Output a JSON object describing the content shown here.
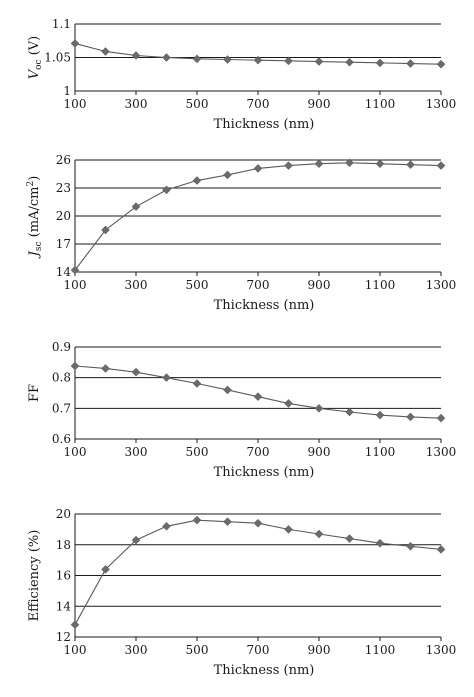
{
  "chart_data": [
    {
      "type": "line",
      "id": "voc",
      "x": [
        100,
        200,
        300,
        400,
        500,
        600,
        700,
        800,
        900,
        1000,
        1100,
        1200,
        1300
      ],
      "series": [
        {
          "values": [
            1.071,
            1.059,
            1.053,
            1.05,
            1.048,
            1.047,
            1.046,
            1.045,
            1.044,
            1.043,
            1.042,
            1.041,
            1.04
          ]
        }
      ],
      "xlabel": "Thickness (nm)",
      "ylabel_main": "V",
      "ylabel_sub": "oc",
      "ylabel_rest": " (V)",
      "xlim": [
        100,
        1300
      ],
      "ylim": [
        1,
        1.1
      ],
      "xticks": [
        "100",
        "300",
        "500",
        "700",
        "900",
        "1100",
        "1300"
      ],
      "yticks": [
        "1",
        "1.05",
        "1.1"
      ],
      "ytick_values": [
        1,
        1.05,
        1.1
      ],
      "grid": true,
      "marker": "diamond",
      "color": "#5a5a5a"
    },
    {
      "type": "line",
      "id": "jsc",
      "x": [
        100,
        200,
        300,
        400,
        500,
        600,
        700,
        800,
        900,
        1000,
        1100,
        1200,
        1300
      ],
      "series": [
        {
          "values": [
            14.2,
            18.5,
            21.0,
            22.8,
            23.8,
            24.4,
            25.1,
            25.4,
            25.6,
            25.7,
            25.6,
            25.5,
            25.4
          ]
        }
      ],
      "xlabel": "Thickness (nm)",
      "ylabel_main": "J",
      "ylabel_sub": "sc",
      "ylabel_rest": " (mA/cm",
      "ylabel_sup": "2",
      "ylabel_end": ")",
      "xlim": [
        100,
        1300
      ],
      "ylim": [
        14,
        26
      ],
      "xticks": [
        "100",
        "300",
        "500",
        "700",
        "900",
        "1100",
        "1300"
      ],
      "yticks": [
        "14",
        "17",
        "20",
        "23",
        "26"
      ],
      "ytick_values": [
        14,
        17,
        20,
        23,
        26
      ],
      "grid": true,
      "marker": "diamond",
      "color": "#5a5a5a"
    },
    {
      "type": "line",
      "id": "ff",
      "x": [
        100,
        200,
        300,
        400,
        500,
        600,
        700,
        800,
        900,
        1000,
        1100,
        1200,
        1300
      ],
      "series": [
        {
          "values": [
            0.838,
            0.83,
            0.818,
            0.8,
            0.781,
            0.76,
            0.738,
            0.716,
            0.7,
            0.688,
            0.678,
            0.672,
            0.668
          ]
        }
      ],
      "xlabel": "Thickness (nm)",
      "ylabel_main": "FF",
      "xlim": [
        100,
        1300
      ],
      "ylim": [
        0.6,
        0.9
      ],
      "xticks": [
        "100",
        "300",
        "500",
        "700",
        "900",
        "1100",
        "1300"
      ],
      "yticks": [
        "0.6",
        "0.7",
        "0.8",
        "0.9"
      ],
      "ytick_values": [
        0.6,
        0.7,
        0.8,
        0.9
      ],
      "grid": true,
      "marker": "diamond",
      "color": "#5a5a5a"
    },
    {
      "type": "line",
      "id": "efficiency",
      "x": [
        100,
        200,
        300,
        400,
        500,
        600,
        700,
        800,
        900,
        1000,
        1100,
        1200,
        1300
      ],
      "series": [
        {
          "values": [
            12.8,
            16.4,
            18.3,
            19.2,
            19.6,
            19.5,
            19.4,
            19.0,
            18.7,
            18.4,
            18.1,
            17.9,
            17.7
          ]
        }
      ],
      "xlabel": "Thickness (nm)",
      "ylabel_main": "Efficiency (%)",
      "xlim": [
        100,
        1300
      ],
      "ylim": [
        12,
        20
      ],
      "xticks": [
        "100",
        "300",
        "500",
        "700",
        "900",
        "1100",
        "1300"
      ],
      "yticks": [
        "12",
        "14",
        "16",
        "18",
        "20"
      ],
      "ytick_values": [
        12,
        14,
        16,
        18,
        20
      ],
      "grid": true,
      "marker": "diamond",
      "color": "#5a5a5a"
    }
  ]
}
